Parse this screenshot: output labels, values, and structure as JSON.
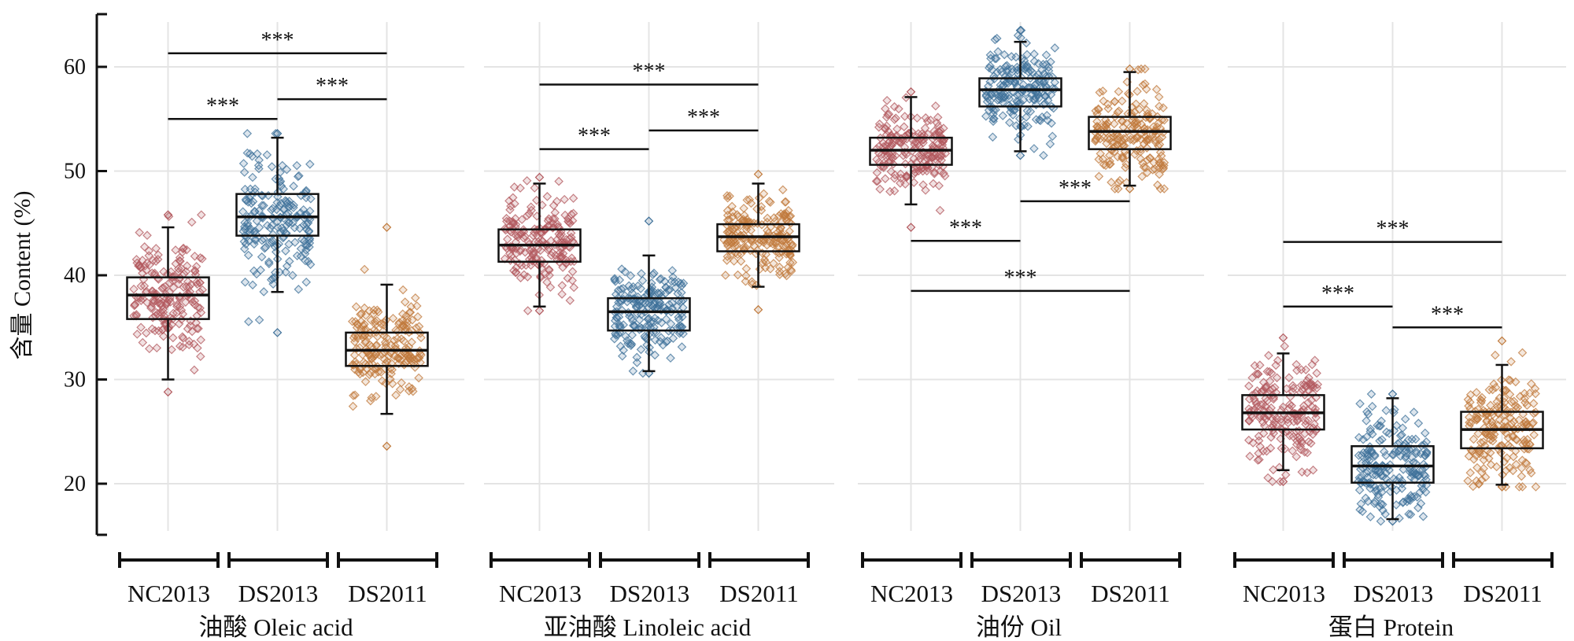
{
  "chart_data": {
    "type": "box",
    "ylabel": "含量 Content (%)",
    "y_ticks": [
      20,
      30,
      40,
      50,
      60
    ],
    "ylim": [
      15,
      65
    ],
    "grid": true,
    "colors": {
      "NC2013": "#b35a5f",
      "DS2013": "#3f7199",
      "DS2011": "#c07a3c"
    },
    "panels": [
      {
        "title": "油酸 Oleic acid",
        "categories": [
          "NC2013",
          "DS2013",
          "DS2011"
        ],
        "boxes": [
          {
            "category": "NC2013",
            "min": 30.0,
            "q1": 35.8,
            "median": 38.1,
            "q3": 39.8,
            "max": 44.6,
            "spread": [
              28.8,
              45.8
            ]
          },
          {
            "category": "DS2013",
            "min": 38.4,
            "q1": 43.8,
            "median": 45.6,
            "q3": 47.8,
            "max": 53.2,
            "spread": [
              34.5,
              53.6
            ]
          },
          {
            "category": "DS2011",
            "min": 26.7,
            "q1": 31.3,
            "median": 32.8,
            "q3": 34.5,
            "max": 39.1,
            "spread": [
              23.6,
              44.6
            ]
          }
        ],
        "significance": [
          {
            "from": 0,
            "to": 1,
            "y": 55.0,
            "label": "***"
          },
          {
            "from": 1,
            "to": 2,
            "y": 56.9,
            "label": "***"
          },
          {
            "from": 0,
            "to": 2,
            "y": 61.3,
            "label": "***"
          }
        ]
      },
      {
        "title": "亚油酸 Linoleic acid",
        "categories": [
          "NC2013",
          "DS2013",
          "DS2011"
        ],
        "boxes": [
          {
            "category": "NC2013",
            "min": 37.0,
            "q1": 41.3,
            "median": 42.9,
            "q3": 44.4,
            "max": 48.8,
            "spread": [
              36.6,
              49.4
            ]
          },
          {
            "category": "DS2013",
            "min": 30.8,
            "q1": 34.7,
            "median": 36.5,
            "q3": 37.8,
            "max": 41.9,
            "spread": [
              30.6,
              45.2
            ]
          },
          {
            "category": "DS2011",
            "min": 38.9,
            "q1": 42.3,
            "median": 43.7,
            "q3": 44.9,
            "max": 48.8,
            "spread": [
              36.7,
              49.7
            ]
          }
        ],
        "significance": [
          {
            "from": 0,
            "to": 1,
            "y": 52.1,
            "label": "***"
          },
          {
            "from": 1,
            "to": 2,
            "y": 53.9,
            "label": "***"
          },
          {
            "from": 0,
            "to": 2,
            "y": 58.3,
            "label": "***"
          }
        ]
      },
      {
        "title": "油份 Oil",
        "categories": [
          "NC2013",
          "DS2013",
          "DS2011"
        ],
        "boxes": [
          {
            "category": "NC2013",
            "min": 46.8,
            "q1": 50.6,
            "median": 52.0,
            "q3": 53.2,
            "max": 57.1,
            "spread": [
              44.6,
              57.6
            ]
          },
          {
            "category": "DS2013",
            "min": 51.9,
            "q1": 56.2,
            "median": 57.8,
            "q3": 58.9,
            "max": 62.4,
            "spread": [
              51.5,
              63.5
            ]
          },
          {
            "category": "DS2011",
            "min": 48.6,
            "q1": 52.1,
            "median": 53.8,
            "q3": 55.2,
            "max": 59.5,
            "spread": [
              48.3,
              59.8
            ]
          }
        ],
        "significance": [
          {
            "from": 0,
            "to": 1,
            "y": 43.3,
            "label": "***"
          },
          {
            "from": 1,
            "to": 2,
            "y": 47.1,
            "label": "***"
          },
          {
            "from": 0,
            "to": 2,
            "y": 38.5,
            "label": "***"
          }
        ]
      },
      {
        "title": "蛋白 Protein",
        "categories": [
          "NC2013",
          "DS2013",
          "DS2011"
        ],
        "boxes": [
          {
            "category": "NC2013",
            "min": 21.3,
            "q1": 25.2,
            "median": 26.8,
            "q3": 28.5,
            "max": 32.5,
            "spread": [
              20.2,
              34.0
            ]
          },
          {
            "category": "DS2013",
            "min": 16.6,
            "q1": 20.1,
            "median": 21.7,
            "q3": 23.6,
            "max": 28.2,
            "spread": [
              16.4,
              28.6
            ]
          },
          {
            "category": "DS2011",
            "min": 19.9,
            "q1": 23.4,
            "median": 25.2,
            "q3": 26.9,
            "max": 31.4,
            "spread": [
              19.7,
              33.7
            ]
          }
        ],
        "significance": [
          {
            "from": 0,
            "to": 1,
            "y": 37.0,
            "label": "***"
          },
          {
            "from": 1,
            "to": 2,
            "y": 35.0,
            "label": "***"
          },
          {
            "from": 0,
            "to": 2,
            "y": 43.2,
            "label": "***"
          }
        ]
      }
    ]
  }
}
